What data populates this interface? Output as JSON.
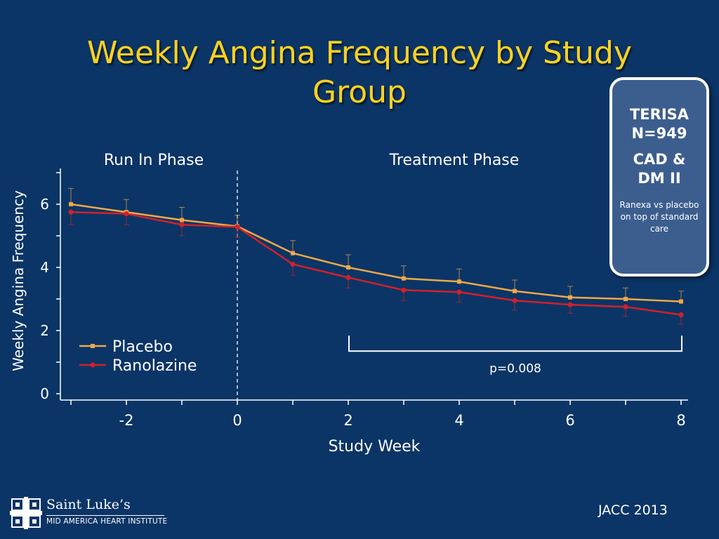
{
  "title": {
    "line1": "Weekly Angina Frequency by Study",
    "line2": "Group"
  },
  "info_box": {
    "line1": "TERISA",
    "line2": "N=949",
    "line3": "CAD &",
    "line4": "DM II",
    "note": "Ranexa vs placebo on top of standard care"
  },
  "citation": "JACC 2013",
  "logo": {
    "name": "Saint Luke’s",
    "subtitle": "MID AMERICA HEART INSTITUTE",
    "icon": "saint-lukes-cross-logo"
  },
  "colors": {
    "background": "#0b3566",
    "title": "#ffd21f",
    "placebo": "#f0a848",
    "ranolazine": "#d4202a"
  },
  "chart_data": {
    "type": "line",
    "xlabel": "Study Week",
    "ylabel": "Weekly Angina Frequency",
    "xlim": [
      -3,
      8
    ],
    "ylim": [
      0,
      7
    ],
    "xticks": [
      -2,
      0,
      2,
      4,
      6,
      8
    ],
    "yticks": [
      0,
      2,
      4,
      6
    ],
    "x": [
      -3,
      -2,
      -1,
      0,
      1,
      2,
      3,
      4,
      5,
      6,
      7,
      8
    ],
    "series": [
      {
        "name": "Placebo",
        "color": "#f0a848",
        "marker": "square",
        "values": [
          6.0,
          5.75,
          5.5,
          5.3,
          4.45,
          4.0,
          3.65,
          3.55,
          3.25,
          3.05,
          3.0,
          2.92
        ],
        "error_upper": [
          6.5,
          6.15,
          5.9,
          5.65,
          4.85,
          4.4,
          4.05,
          3.95,
          3.6,
          3.4,
          3.35,
          3.25
        ]
      },
      {
        "name": "Ranolazine",
        "color": "#d4202a",
        "marker": "circle",
        "values": [
          5.75,
          5.7,
          5.35,
          5.28,
          4.1,
          3.68,
          3.28,
          3.22,
          2.95,
          2.82,
          2.75,
          2.5
        ],
        "error_lower": [
          5.35,
          5.35,
          5.0,
          4.95,
          3.75,
          3.35,
          2.95,
          2.9,
          2.65,
          2.55,
          2.45,
          2.2
        ]
      }
    ],
    "phases": [
      {
        "label": "Run In Phase"
      },
      {
        "label": "Treatment Phase"
      }
    ],
    "phase_divider_x": 0,
    "annotation": {
      "text": "p=0.008",
      "x_start": 2,
      "x_end": 8,
      "y": 1.55
    },
    "legend_placement": "bottom-left",
    "grid": false
  }
}
